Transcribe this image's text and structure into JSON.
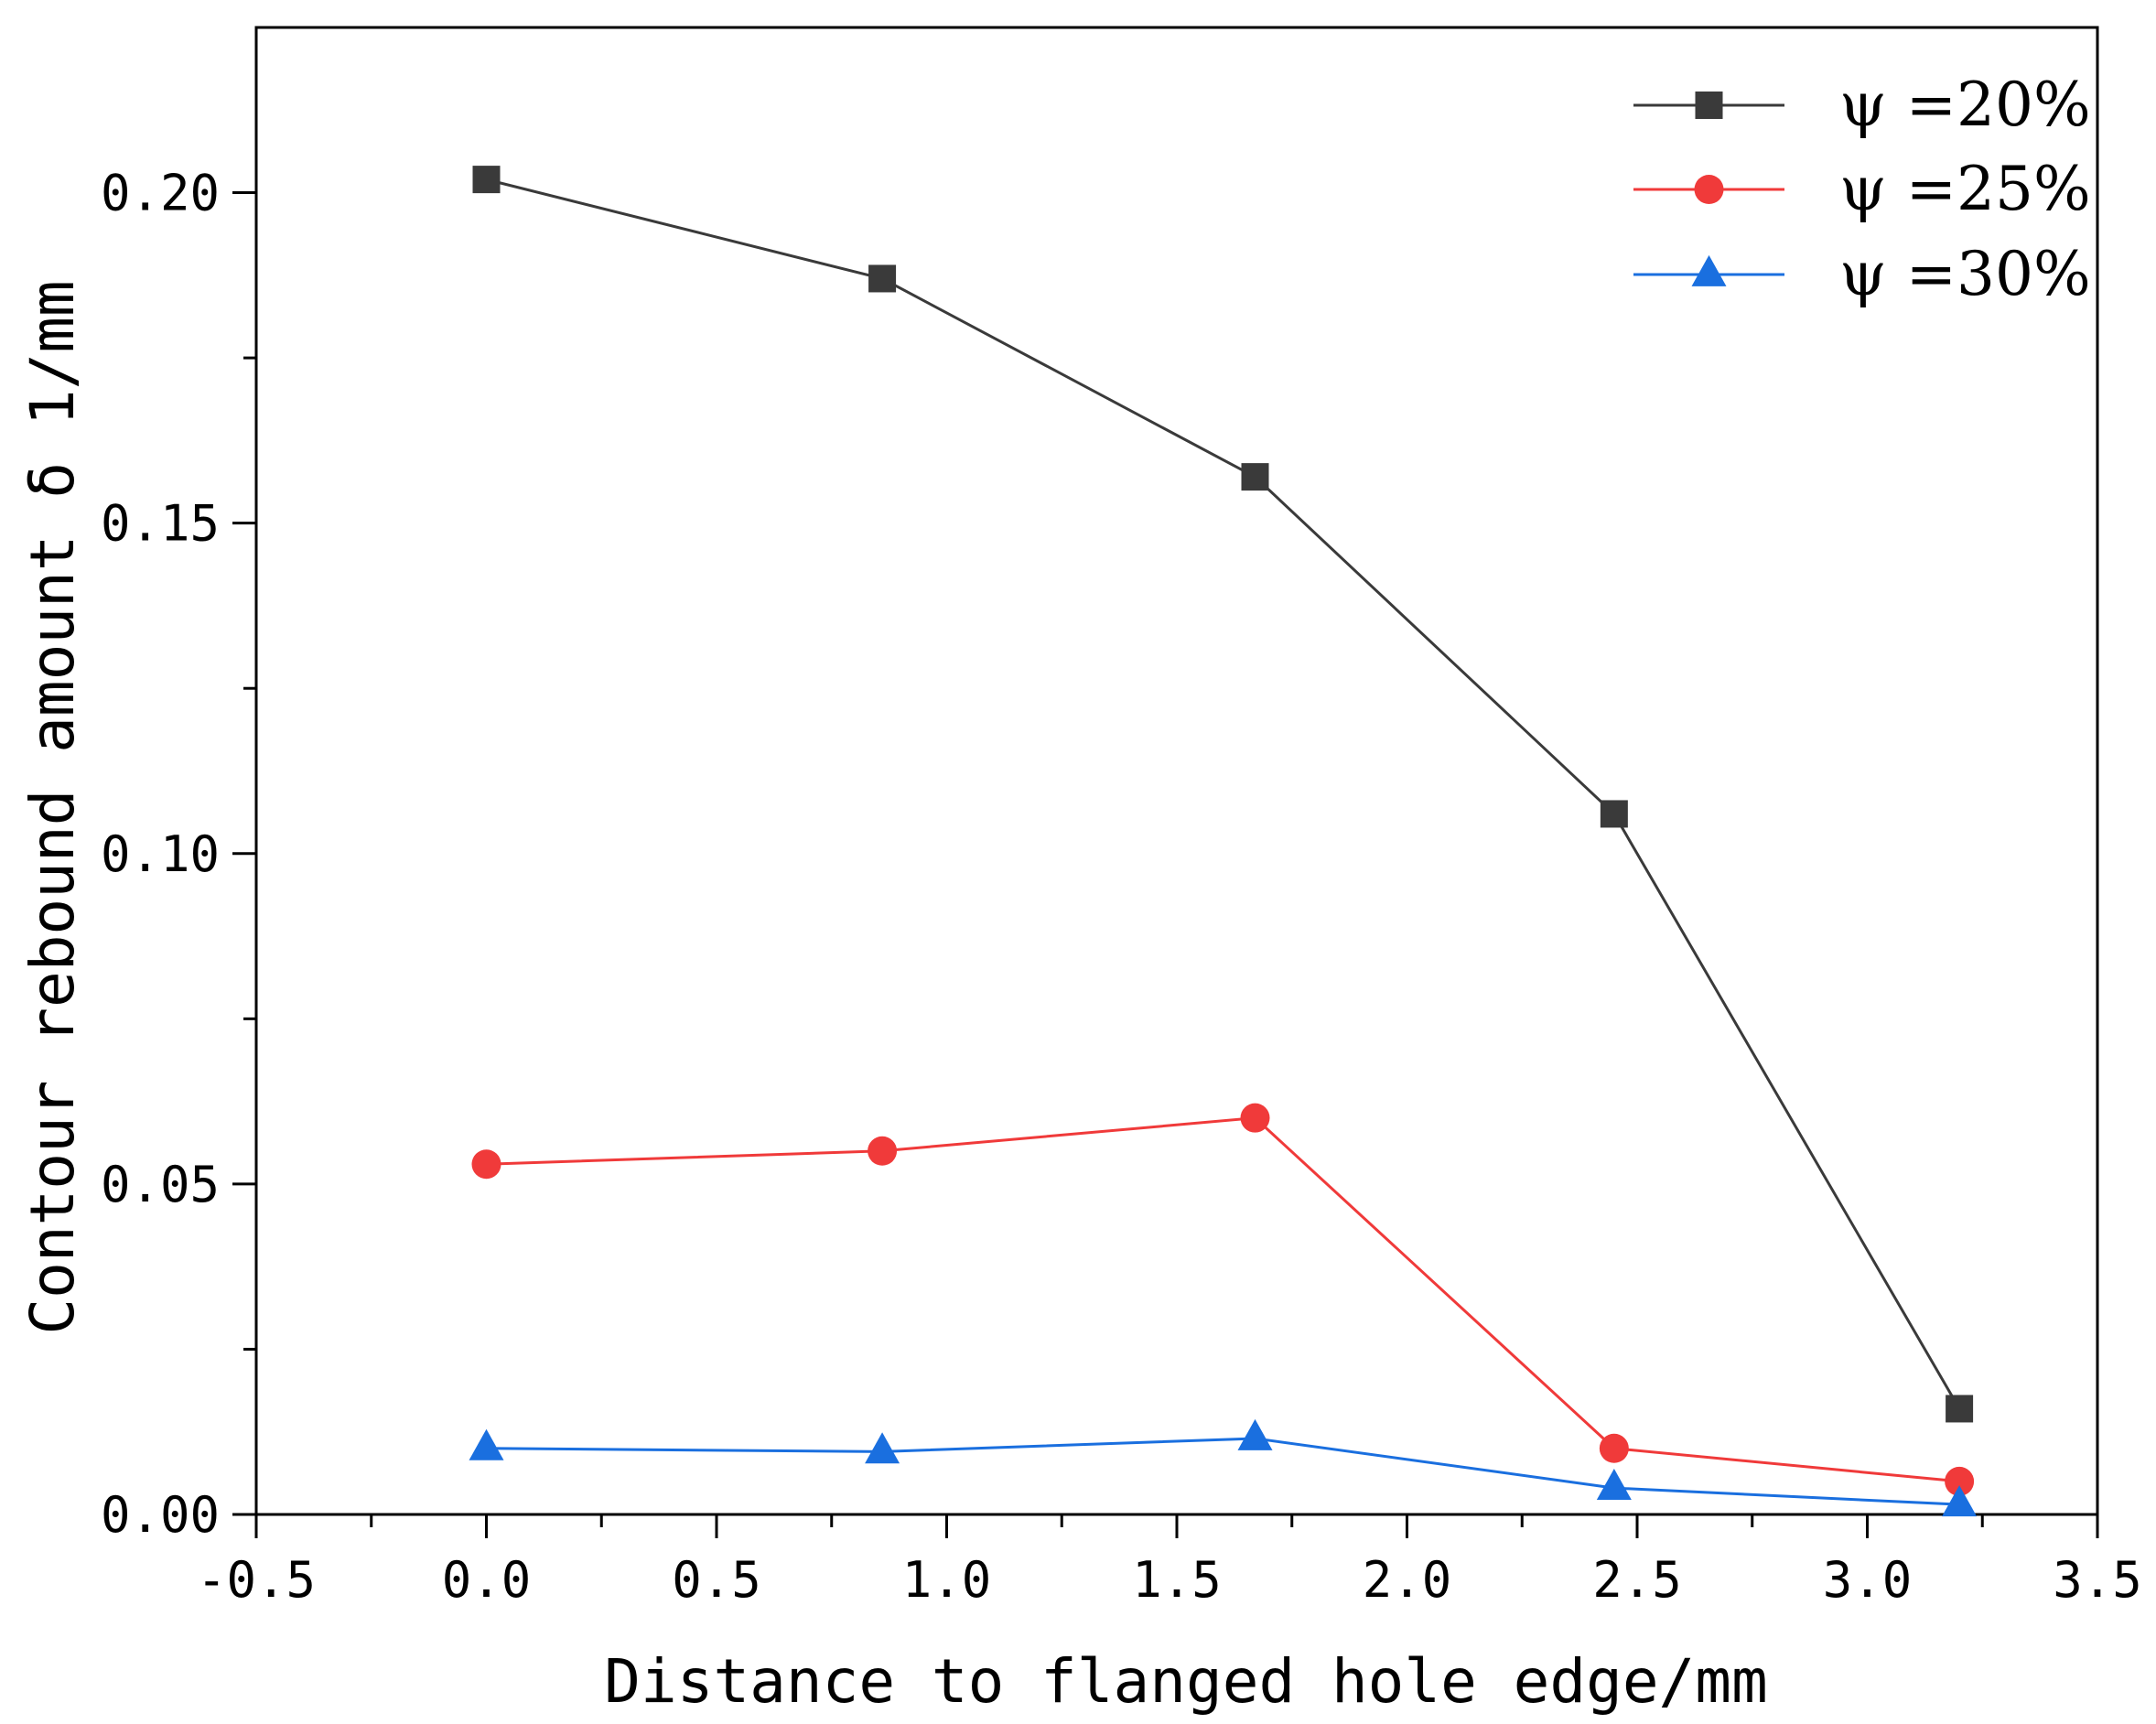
{
  "chart_data": {
    "type": "line",
    "title": "",
    "xlabel": "Distance to flanged hole edge/mm",
    "ylabel": "Contour rebound amount δ 1/mm",
    "xlim": [
      -0.5,
      3.5
    ],
    "ylim": [
      0.0,
      0.225
    ],
    "x_ticks": [
      -0.5,
      0.0,
      0.5,
      1.0,
      1.5,
      2.0,
      2.5,
      3.0,
      3.5
    ],
    "x_tick_labels": [
      "-0.5",
      "0.0",
      "0.5",
      "1.0",
      "1.5",
      "2.0",
      "2.5",
      "3.0",
      "3.5"
    ],
    "y_ticks": [
      0.0,
      0.05,
      0.1,
      0.15,
      0.2
    ],
    "y_tick_labels": [
      "0.00",
      "0.05",
      "0.10",
      "0.15",
      "0.20"
    ],
    "legend_position": "top-right",
    "grid": false,
    "x": [
      0.0,
      0.86,
      1.67,
      2.45,
      3.2
    ],
    "series": [
      {
        "name": "ψ =20%",
        "color": "#3a3a3a",
        "marker": "square",
        "values": [
          0.202,
          0.187,
          0.157,
          0.106,
          0.016
        ]
      },
      {
        "name": "ψ =25%",
        "color": "#f03a3a",
        "marker": "circle",
        "values": [
          0.053,
          0.055,
          0.06,
          0.01,
          0.005
        ]
      },
      {
        "name": "ψ =30%",
        "color": "#1a6fdf",
        "marker": "triangle",
        "values": [
          0.01,
          0.0095,
          0.0115,
          0.004,
          0.0015
        ]
      }
    ]
  }
}
